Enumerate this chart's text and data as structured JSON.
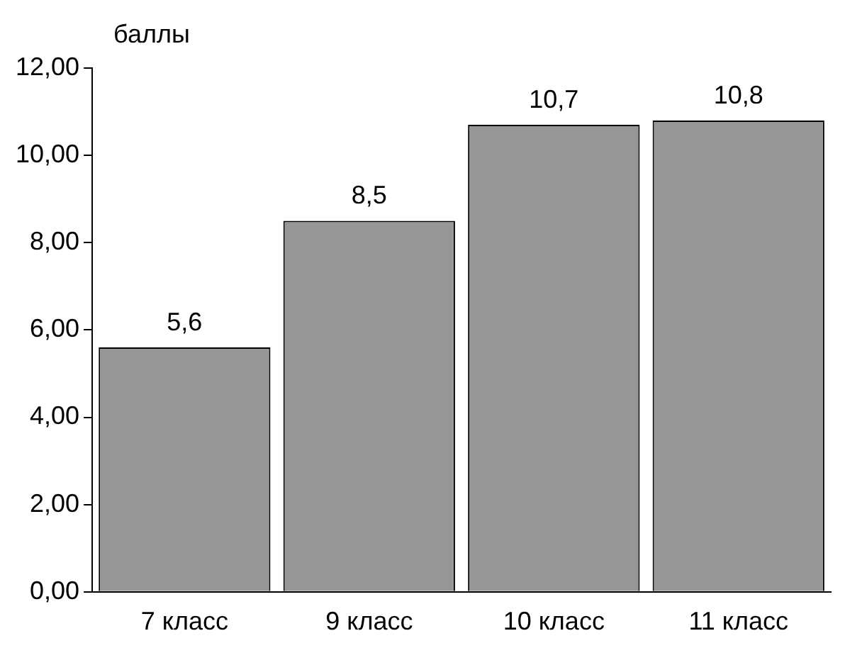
{
  "chart_data": {
    "type": "bar",
    "ylabel": "баллы",
    "categories": [
      "7 класс",
      "9 класс",
      "10 класс",
      "11 класс"
    ],
    "values": [
      5.6,
      8.5,
      10.7,
      10.8
    ],
    "value_labels": [
      "5,6",
      "8,5",
      "10,7",
      "10,8"
    ],
    "color": "#969696",
    "ylim": [
      0,
      12
    ],
    "yticks": [
      {
        "value": 0,
        "label": "0,00"
      },
      {
        "value": 2,
        "label": "2,00"
      },
      {
        "value": 4,
        "label": "4,00"
      },
      {
        "value": 6,
        "label": "6,00"
      },
      {
        "value": 8,
        "label": "8,00"
      },
      {
        "value": 10,
        "label": "10,00"
      },
      {
        "value": 12,
        "label": "12,00"
      }
    ],
    "grid": false,
    "legend": false
  }
}
